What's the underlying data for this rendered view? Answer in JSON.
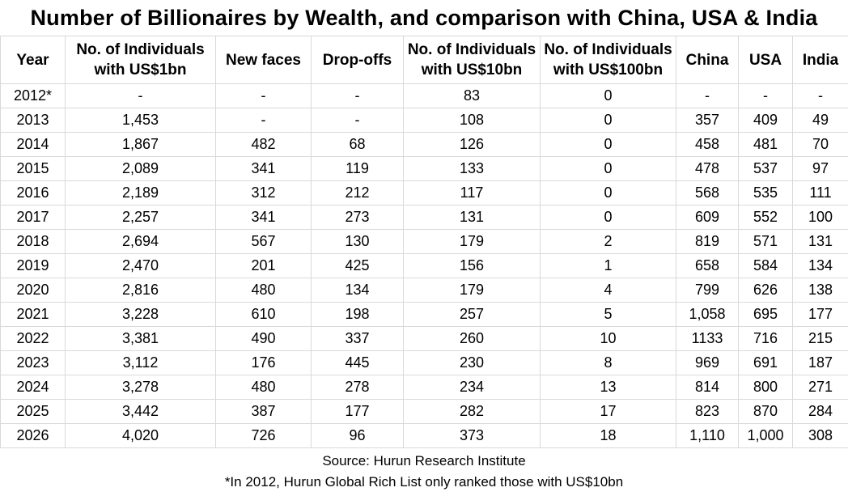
{
  "title": "Number of Billionaires by Wealth, and comparison with China, USA & India",
  "headers": {
    "year": "Year",
    "ind1bn": [
      "No. of Individuals",
      "with US$1bn"
    ],
    "new_faces": "New faces",
    "drop_offs": "Drop-offs",
    "ind10bn": [
      "No. of Individuals",
      "with US$10bn"
    ],
    "ind100bn": [
      "No. of Individuals",
      "with US$100bn"
    ],
    "china": "China",
    "usa": "USA",
    "india": "India"
  },
  "rows": [
    [
      "2012*",
      "-",
      "-",
      "-",
      "83",
      "0",
      "-",
      "-",
      "-"
    ],
    [
      "2013",
      "1,453",
      "-",
      "-",
      "108",
      "0",
      "357",
      "409",
      "49"
    ],
    [
      "2014",
      "1,867",
      "482",
      "68",
      "126",
      "0",
      "458",
      "481",
      "70"
    ],
    [
      "2015",
      "2,089",
      "341",
      "119",
      "133",
      "0",
      "478",
      "537",
      "97"
    ],
    [
      "2016",
      "2,189",
      "312",
      "212",
      "117",
      "0",
      "568",
      "535",
      "111"
    ],
    [
      "2017",
      "2,257",
      "341",
      "273",
      "131",
      "0",
      "609",
      "552",
      "100"
    ],
    [
      "2018",
      "2,694",
      "567",
      "130",
      "179",
      "2",
      "819",
      "571",
      "131"
    ],
    [
      "2019",
      "2,470",
      "201",
      "425",
      "156",
      "1",
      "658",
      "584",
      "134"
    ],
    [
      "2020",
      "2,816",
      "480",
      "134",
      "179",
      "4",
      "799",
      "626",
      "138"
    ],
    [
      "2021",
      "3,228",
      "610",
      "198",
      "257",
      "5",
      "1,058",
      "695",
      "177"
    ],
    [
      "2022",
      "3,381",
      "490",
      "337",
      "260",
      "10",
      "1133",
      "716",
      "215"
    ],
    [
      "2023",
      "3,112",
      "176",
      "445",
      "230",
      "8",
      "969",
      "691",
      "187"
    ],
    [
      "2024",
      "3,278",
      "480",
      "278",
      "234",
      "13",
      "814",
      "800",
      "271"
    ],
    [
      "2025",
      "3,442",
      "387",
      "177",
      "282",
      "17",
      "823",
      "870",
      "284"
    ],
    [
      "2026",
      "4,020",
      "726",
      "96",
      "373",
      "18",
      "1,110",
      "1,000",
      "308"
    ]
  ],
  "footer": {
    "source": "Source: Hurun Research Institute",
    "note": "*In 2012, Hurun Global Rich List only ranked those with US$10bn"
  }
}
